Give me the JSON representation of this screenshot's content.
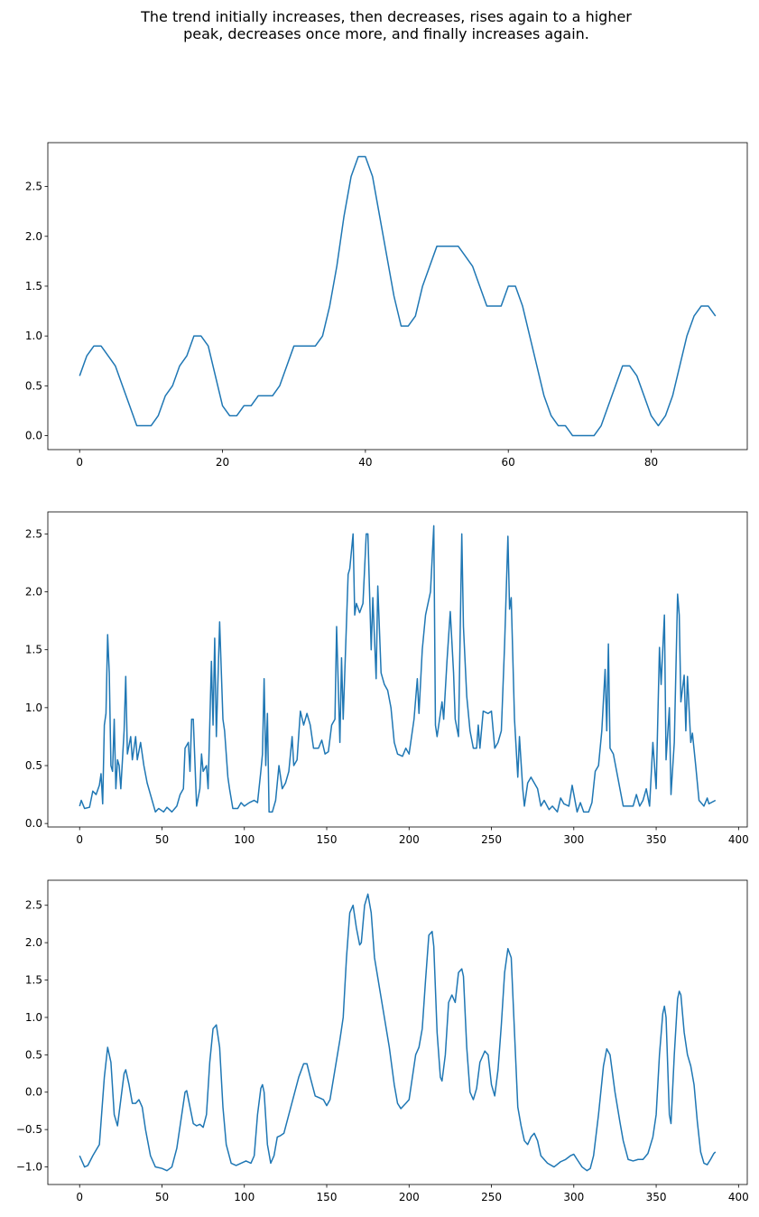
{
  "title": "The trend initially increases, then decreases, rises again to a higher\npeak, decreases once more, and finally increases again.",
  "chart_data": [
    {
      "type": "line",
      "color": "#1f77b4",
      "x": [
        0,
        1,
        2,
        3,
        4,
        5,
        6,
        7,
        8,
        9,
        10,
        11,
        12,
        13,
        14,
        15,
        16,
        17,
        18,
        19,
        20,
        21,
        22,
        23,
        24,
        25,
        26,
        27,
        28,
        29,
        30,
        31,
        32,
        33,
        34,
        35,
        36,
        37,
        38,
        39,
        40,
        41,
        42,
        43,
        44,
        45,
        46,
        47,
        48,
        49,
        50,
        51,
        52,
        53,
        54,
        55,
        56,
        57,
        58,
        59,
        60,
        61,
        62,
        63,
        64,
        65,
        66,
        67,
        68,
        69,
        70,
        71,
        72,
        73,
        74,
        75,
        76,
        77,
        78,
        79,
        80,
        81,
        82,
        83,
        84,
        85,
        86,
        87,
        88,
        89
      ],
      "values": [
        0.6,
        0.8,
        0.9,
        0.9,
        0.8,
        0.7,
        0.5,
        0.3,
        0.1,
        0.1,
        0.1,
        0.2,
        0.4,
        0.5,
        0.7,
        0.8,
        1.0,
        1.0,
        0.9,
        0.6,
        0.3,
        0.2,
        0.2,
        0.3,
        0.3,
        0.4,
        0.4,
        0.4,
        0.5,
        0.7,
        0.9,
        0.9,
        0.9,
        0.9,
        1.0,
        1.3,
        1.7,
        2.2,
        2.6,
        2.8,
        2.8,
        2.6,
        2.2,
        1.8,
        1.4,
        1.1,
        1.1,
        1.2,
        1.5,
        1.7,
        1.9,
        1.9,
        1.9,
        1.9,
        1.8,
        1.7,
        1.5,
        1.3,
        1.3,
        1.3,
        1.5,
        1.5,
        1.3,
        1.0,
        0.7,
        0.4,
        0.2,
        0.1,
        0.1,
        0.0,
        0.0,
        0.0,
        0.0,
        0.1,
        0.3,
        0.5,
        0.7,
        0.7,
        0.6,
        0.4,
        0.2,
        0.1,
        0.2,
        0.4,
        0.7,
        1.0,
        1.2,
        1.3,
        1.3,
        1.2
      ],
      "xlim": [
        -4.45,
        93.45
      ],
      "ylim": [
        -0.14,
        2.94
      ],
      "xticks": [
        0,
        20,
        40,
        60,
        80
      ],
      "yticks": [
        {
          "value": 0,
          "label": "0.0"
        },
        {
          "value": 0.5,
          "label": "0.5"
        },
        {
          "value": 1,
          "label": "1.0"
        },
        {
          "value": 1.5,
          "label": "1.5"
        },
        {
          "value": 2,
          "label": "2.0"
        },
        {
          "value": 2.5,
          "label": "2.5"
        }
      ]
    },
    {
      "type": "line",
      "color": "#1f77b4",
      "x": [
        0,
        1,
        3,
        6,
        8,
        10,
        12,
        13,
        14,
        15,
        16,
        17,
        18,
        19,
        20,
        21,
        22,
        23,
        24,
        25,
        27,
        28,
        29,
        31,
        32,
        34,
        35,
        37,
        39,
        41,
        43,
        46,
        48,
        51,
        53,
        56,
        59,
        61,
        63,
        64,
        66,
        67,
        68,
        69,
        71,
        73,
        74,
        75,
        77,
        78,
        80,
        81,
        82,
        83,
        85,
        87,
        88,
        90,
        91,
        93,
        96,
        98,
        100,
        103,
        106,
        108,
        110,
        111,
        112,
        113,
        114,
        115,
        117,
        119,
        121,
        123,
        125,
        127,
        129,
        130,
        132,
        134,
        136,
        138,
        140,
        142,
        145,
        147,
        149,
        151,
        153,
        155,
        156,
        158,
        159,
        160,
        163,
        164,
        166,
        167,
        168,
        170,
        172,
        174,
        175,
        176,
        177,
        178,
        180,
        181,
        183,
        185,
        187,
        189,
        191,
        193,
        196,
        198,
        200,
        203,
        205,
        206,
        208,
        210,
        213,
        215,
        216,
        217,
        219,
        220,
        221,
        223,
        225,
        227,
        228,
        230,
        232,
        233,
        235,
        237,
        239,
        241,
        242,
        243,
        245,
        248,
        250,
        252,
        254,
        256,
        258,
        260,
        261,
        262,
        264,
        266,
        267,
        269,
        270,
        272,
        274,
        276,
        278,
        280,
        282,
        285,
        287,
        290,
        292,
        294,
        297,
        299,
        302,
        304,
        306,
        309,
        311,
        313,
        315,
        317,
        319,
        320,
        321,
        322,
        324,
        326,
        328,
        330,
        333,
        336,
        338,
        340,
        342,
        344,
        346,
        348,
        350,
        352,
        353,
        355,
        356,
        358,
        359,
        361,
        363,
        364,
        365,
        367,
        368,
        369,
        371,
        372,
        374,
        376,
        379,
        381,
        382,
        386
      ],
      "values": [
        0.15,
        0.2,
        0.13,
        0.14,
        0.28,
        0.25,
        0.33,
        0.43,
        0.17,
        0.85,
        0.95,
        1.63,
        1.3,
        0.5,
        0.45,
        0.9,
        0.3,
        0.55,
        0.5,
        0.3,
        0.8,
        1.27,
        0.6,
        0.75,
        0.55,
        0.75,
        0.55,
        0.7,
        0.5,
        0.35,
        0.25,
        0.1,
        0.13,
        0.1,
        0.14,
        0.1,
        0.15,
        0.25,
        0.3,
        0.65,
        0.7,
        0.45,
        0.9,
        0.9,
        0.15,
        0.3,
        0.6,
        0.45,
        0.5,
        0.3,
        1.4,
        0.85,
        1.6,
        0.75,
        1.74,
        0.9,
        0.8,
        0.4,
        0.3,
        0.13,
        0.13,
        0.18,
        0.15,
        0.18,
        0.2,
        0.18,
        0.45,
        0.6,
        1.25,
        0.5,
        0.95,
        0.1,
        0.1,
        0.2,
        0.5,
        0.3,
        0.35,
        0.45,
        0.75,
        0.5,
        0.55,
        0.97,
        0.85,
        0.95,
        0.85,
        0.65,
        0.65,
        0.72,
        0.6,
        0.62,
        0.85,
        0.9,
        1.7,
        0.7,
        1.43,
        0.9,
        2.15,
        2.2,
        2.5,
        1.8,
        1.9,
        1.82,
        1.9,
        2.5,
        2.5,
        2.0,
        1.5,
        1.95,
        1.25,
        2.05,
        1.3,
        1.2,
        1.15,
        1.0,
        0.7,
        0.6,
        0.58,
        0.65,
        0.6,
        0.9,
        1.25,
        0.95,
        1.5,
        1.8,
        2.0,
        2.57,
        0.85,
        0.75,
        0.95,
        1.05,
        0.9,
        1.4,
        1.83,
        1.3,
        0.9,
        0.75,
        2.5,
        1.7,
        1.1,
        0.8,
        0.65,
        0.65,
        0.85,
        0.65,
        0.97,
        0.95,
        0.97,
        0.65,
        0.7,
        0.8,
        1.55,
        2.48,
        1.85,
        1.95,
        0.9,
        0.4,
        0.75,
        0.3,
        0.15,
        0.35,
        0.4,
        0.35,
        0.3,
        0.15,
        0.2,
        0.12,
        0.15,
        0.1,
        0.22,
        0.17,
        0.15,
        0.33,
        0.1,
        0.18,
        0.1,
        0.1,
        0.18,
        0.45,
        0.5,
        0.8,
        1.33,
        0.8,
        1.55,
        0.65,
        0.6,
        0.45,
        0.3,
        0.15,
        0.15,
        0.15,
        0.25,
        0.15,
        0.2,
        0.3,
        0.15,
        0.7,
        0.3,
        1.52,
        1.2,
        1.8,
        0.55,
        1.0,
        0.25,
        0.7,
        1.98,
        1.8,
        1.05,
        1.28,
        0.8,
        1.27,
        0.7,
        0.78,
        0.5,
        0.2,
        0.15,
        0.22,
        0.17,
        0.2
      ],
      "xlim": [
        -19.3,
        405.3
      ],
      "ylim": [
        -0.03,
        2.69
      ],
      "xticks": [
        0,
        50,
        100,
        150,
        200,
        250,
        300,
        350,
        400
      ],
      "yticks": [
        {
          "value": 0,
          "label": "0.0"
        },
        {
          "value": 0.5,
          "label": "0.5"
        },
        {
          "value": 1,
          "label": "1.0"
        },
        {
          "value": 1.5,
          "label": "1.5"
        },
        {
          "value": 2,
          "label": "2.0"
        },
        {
          "value": 2.5,
          "label": "2.5"
        }
      ]
    },
    {
      "type": "line",
      "color": "#1f77b4",
      "x": [
        0,
        3,
        5,
        8,
        12,
        15,
        17,
        19,
        21,
        23,
        25,
        27,
        28,
        30,
        32,
        34,
        36,
        38,
        40,
        43,
        46,
        50,
        53,
        56,
        59,
        62,
        64,
        65,
        67,
        69,
        71,
        73,
        75,
        77,
        79,
        81,
        83,
        85,
        87,
        89,
        92,
        95,
        98,
        101,
        104,
        106,
        108,
        110,
        111,
        112,
        114,
        116,
        118,
        120,
        122,
        124,
        127,
        130,
        133,
        136,
        138,
        140,
        143,
        146,
        148,
        150,
        152,
        155,
        158,
        160,
        162,
        164,
        166,
        168,
        170,
        171,
        173,
        175,
        177,
        179,
        182,
        185,
        188,
        191,
        193,
        195,
        198,
        200,
        202,
        204,
        206,
        208,
        210,
        212,
        214,
        215,
        217,
        219,
        220,
        222,
        224,
        226,
        228,
        230,
        232,
        233,
        235,
        237,
        239,
        241,
        243,
        246,
        248,
        250,
        252,
        254,
        256,
        258,
        260,
        262,
        264,
        266,
        268,
        270,
        272,
        274,
        276,
        278,
        280,
        284,
        288,
        292,
        295,
        298,
        300,
        302,
        305,
        308,
        310,
        312,
        315,
        318,
        320,
        322,
        325,
        328,
        330,
        333,
        336,
        339,
        342,
        345,
        348,
        350,
        352,
        354,
        355,
        356,
        358,
        359,
        361,
        363,
        364,
        365,
        367,
        369,
        371,
        373,
        375,
        377,
        379,
        381,
        383,
        385,
        386
      ],
      "values": [
        -0.85,
        -1.0,
        -0.98,
        -0.85,
        -0.7,
        0.2,
        0.6,
        0.4,
        -0.3,
        -0.45,
        -0.1,
        0.25,
        0.3,
        0.1,
        -0.15,
        -0.15,
        -0.1,
        -0.2,
        -0.5,
        -0.85,
        -1.0,
        -1.02,
        -1.05,
        -1.0,
        -0.75,
        -0.3,
        0.0,
        0.02,
        -0.2,
        -0.42,
        -0.45,
        -0.43,
        -0.47,
        -0.3,
        0.4,
        0.85,
        0.9,
        0.6,
        -0.2,
        -0.7,
        -0.95,
        -0.98,
        -0.95,
        -0.92,
        -0.95,
        -0.85,
        -0.3,
        0.05,
        0.1,
        0.0,
        -0.7,
        -0.95,
        -0.85,
        -0.6,
        -0.58,
        -0.55,
        -0.3,
        -0.05,
        0.2,
        0.38,
        0.38,
        0.2,
        -0.05,
        -0.08,
        -0.1,
        -0.18,
        -0.1,
        0.3,
        0.7,
        1.0,
        1.8,
        2.4,
        2.5,
        2.2,
        1.97,
        2.0,
        2.5,
        2.65,
        2.4,
        1.8,
        1.4,
        1.0,
        0.6,
        0.1,
        -0.15,
        -0.22,
        -0.15,
        -0.1,
        0.2,
        0.5,
        0.6,
        0.85,
        1.5,
        2.1,
        2.15,
        1.95,
        0.8,
        0.2,
        0.15,
        0.5,
        1.2,
        1.3,
        1.2,
        1.6,
        1.65,
        1.55,
        0.6,
        0.0,
        -0.1,
        0.05,
        0.4,
        0.55,
        0.5,
        0.1,
        -0.05,
        0.3,
        0.9,
        1.6,
        1.92,
        1.8,
        0.8,
        -0.2,
        -0.45,
        -0.65,
        -0.7,
        -0.6,
        -0.55,
        -0.65,
        -0.85,
        -0.95,
        -1.0,
        -0.93,
        -0.9,
        -0.85,
        -0.83,
        -0.9,
        -1.0,
        -1.05,
        -1.02,
        -0.85,
        -0.3,
        0.35,
        0.58,
        0.5,
        0.0,
        -0.4,
        -0.65,
        -0.9,
        -0.92,
        -0.9,
        -0.9,
        -0.82,
        -0.6,
        -0.3,
        0.5,
        1.05,
        1.15,
        1.0,
        -0.3,
        -0.42,
        0.5,
        1.25,
        1.35,
        1.3,
        0.8,
        0.5,
        0.35,
        0.1,
        -0.4,
        -0.8,
        -0.95,
        -0.97,
        -0.9,
        -0.82,
        -0.8
      ],
      "xlim": [
        -19.3,
        405.3
      ],
      "ylim": [
        -1.235,
        2.835
      ],
      "xticks": [
        0,
        50,
        100,
        150,
        200,
        250,
        300,
        350,
        400
      ],
      "yticks": [
        {
          "value": -1,
          "label": "−1.0"
        },
        {
          "value": -0.5,
          "label": "−0.5"
        },
        {
          "value": 0,
          "label": "0.0"
        },
        {
          "value": 0.5,
          "label": "0.5"
        },
        {
          "value": 1,
          "label": "1.0"
        },
        {
          "value": 1.5,
          "label": "1.5"
        },
        {
          "value": 2,
          "label": "2.0"
        },
        {
          "value": 2.5,
          "label": "2.5"
        }
      ]
    }
  ]
}
